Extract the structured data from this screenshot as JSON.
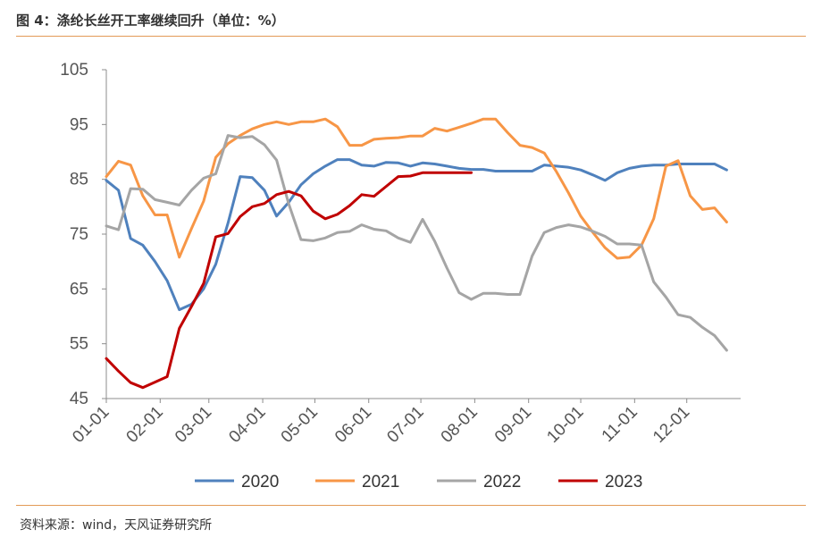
{
  "header": {
    "title": "图 4：涤纶长丝开工率继续回升（单位：%）"
  },
  "footer": {
    "source": "资料来源：wind，天风证券研究所"
  },
  "chart_data": {
    "type": "line",
    "title": "",
    "xlabel": "",
    "ylabel": "",
    "ylim": [
      45,
      105
    ],
    "yticks": [
      "45",
      "55",
      "65",
      "75",
      "85",
      "95",
      "105"
    ],
    "xticks": [
      "01-01",
      "02-01",
      "03-01",
      "04-01",
      "05-01",
      "06-01",
      "07-01",
      "08-01",
      "09-01",
      "10-01",
      "11-01",
      "12-01"
    ],
    "x_domain": [
      1,
      366
    ],
    "grid": false,
    "legend_position": "bottom",
    "series": [
      {
        "name": "2020",
        "color": "#4f81bd",
        "points": [
          [
            1,
            84.8
          ],
          [
            8,
            83
          ],
          [
            15,
            74.2
          ],
          [
            22,
            73
          ],
          [
            29,
            70
          ],
          [
            36,
            66.5
          ],
          [
            43,
            61.2
          ],
          [
            50,
            62.2
          ],
          [
            57,
            65
          ],
          [
            64,
            69.5
          ],
          [
            71,
            77
          ],
          [
            78,
            85.5
          ],
          [
            85,
            85.3
          ],
          [
            92,
            83
          ],
          [
            99,
            78.3
          ],
          [
            106,
            80.8
          ],
          [
            113,
            84
          ],
          [
            120,
            86
          ],
          [
            127,
            87.4
          ],
          [
            134,
            88.6
          ],
          [
            141,
            88.6
          ],
          [
            148,
            87.6
          ],
          [
            155,
            87.4
          ],
          [
            162,
            88.1
          ],
          [
            169,
            88
          ],
          [
            176,
            87.4
          ],
          [
            183,
            88
          ],
          [
            190,
            87.8
          ],
          [
            197,
            87.4
          ],
          [
            204,
            87
          ],
          [
            211,
            86.8
          ],
          [
            218,
            86.8
          ],
          [
            225,
            86.5
          ],
          [
            232,
            86.5
          ],
          [
            239,
            86.5
          ],
          [
            246,
            86.5
          ],
          [
            253,
            87.6
          ],
          [
            260,
            87.4
          ],
          [
            267,
            87.2
          ],
          [
            274,
            86.7
          ],
          [
            281,
            85.8
          ],
          [
            288,
            84.8
          ],
          [
            295,
            86.2
          ],
          [
            302,
            87
          ],
          [
            309,
            87.4
          ],
          [
            316,
            87.6
          ],
          [
            323,
            87.6
          ],
          [
            330,
            87.8
          ],
          [
            337,
            87.8
          ],
          [
            344,
            87.8
          ],
          [
            351,
            87.8
          ],
          [
            358,
            86.7
          ]
        ]
      },
      {
        "name": "2021",
        "color": "#f79646",
        "points": [
          [
            1,
            85.5
          ],
          [
            8,
            88.3
          ],
          [
            15,
            87.6
          ],
          [
            22,
            82
          ],
          [
            29,
            78.5
          ],
          [
            36,
            78.5
          ],
          [
            43,
            70.8
          ],
          [
            50,
            76
          ],
          [
            57,
            81
          ],
          [
            64,
            89
          ],
          [
            71,
            91.5
          ],
          [
            78,
            93
          ],
          [
            85,
            94.2
          ],
          [
            92,
            95
          ],
          [
            99,
            95.5
          ],
          [
            106,
            95
          ],
          [
            113,
            95.5
          ],
          [
            120,
            95.5
          ],
          [
            127,
            96
          ],
          [
            134,
            94.6
          ],
          [
            141,
            91.2
          ],
          [
            148,
            91.2
          ],
          [
            155,
            92.3
          ],
          [
            162,
            92.5
          ],
          [
            169,
            92.6
          ],
          [
            176,
            92.9
          ],
          [
            183,
            92.9
          ],
          [
            190,
            94.3
          ],
          [
            197,
            93.8
          ],
          [
            204,
            94.5
          ],
          [
            211,
            95.2
          ],
          [
            218,
            96
          ],
          [
            225,
            96
          ],
          [
            232,
            93.5
          ],
          [
            239,
            91.2
          ],
          [
            246,
            90.8
          ],
          [
            253,
            89.8
          ],
          [
            260,
            86.4
          ],
          [
            267,
            82.5
          ],
          [
            274,
            78.3
          ],
          [
            281,
            75.3
          ],
          [
            288,
            72.5
          ],
          [
            295,
            70.6
          ],
          [
            302,
            70.8
          ],
          [
            309,
            73
          ],
          [
            316,
            77.8
          ],
          [
            323,
            87.4
          ],
          [
            330,
            88.4
          ],
          [
            337,
            82
          ],
          [
            344,
            79.5
          ],
          [
            351,
            79.8
          ],
          [
            358,
            77.2
          ]
        ]
      },
      {
        "name": "2022",
        "color": "#a5a5a5",
        "points": [
          [
            1,
            76.5
          ],
          [
            8,
            75.8
          ],
          [
            15,
            83.3
          ],
          [
            22,
            83.2
          ],
          [
            29,
            81.3
          ],
          [
            36,
            80.8
          ],
          [
            43,
            80.3
          ],
          [
            50,
            83
          ],
          [
            57,
            85.2
          ],
          [
            64,
            86
          ],
          [
            71,
            93
          ],
          [
            78,
            92.6
          ],
          [
            85,
            92.8
          ],
          [
            92,
            91.3
          ],
          [
            99,
            88.5
          ],
          [
            106,
            80.5
          ],
          [
            113,
            74
          ],
          [
            120,
            73.8
          ],
          [
            127,
            74.3
          ],
          [
            134,
            75.3
          ],
          [
            141,
            75.5
          ],
          [
            148,
            76.7
          ],
          [
            155,
            75.9
          ],
          [
            162,
            75.6
          ],
          [
            169,
            74.3
          ],
          [
            176,
            73.5
          ],
          [
            183,
            77.7
          ],
          [
            190,
            73.7
          ],
          [
            197,
            68.8
          ],
          [
            204,
            64.3
          ],
          [
            211,
            63.1
          ],
          [
            218,
            64.2
          ],
          [
            225,
            64.2
          ],
          [
            232,
            64
          ],
          [
            239,
            64
          ],
          [
            246,
            71
          ],
          [
            253,
            75.3
          ],
          [
            260,
            76.2
          ],
          [
            267,
            76.7
          ],
          [
            274,
            76.3
          ],
          [
            281,
            75.5
          ],
          [
            288,
            74.6
          ],
          [
            295,
            73.2
          ],
          [
            302,
            73.2
          ],
          [
            309,
            73
          ],
          [
            316,
            66.3
          ],
          [
            323,
            63.5
          ],
          [
            330,
            60.3
          ],
          [
            337,
            59.8
          ],
          [
            344,
            58
          ],
          [
            351,
            56.5
          ],
          [
            358,
            53.8
          ]
        ]
      },
      {
        "name": "2023",
        "color": "#c00000",
        "points": [
          [
            1,
            52.3
          ],
          [
            8,
            50
          ],
          [
            15,
            47.9
          ],
          [
            22,
            47
          ],
          [
            29,
            48
          ],
          [
            36,
            49
          ],
          [
            43,
            57.8
          ],
          [
            50,
            61.8
          ],
          [
            57,
            66
          ],
          [
            64,
            74.5
          ],
          [
            71,
            75.1
          ],
          [
            78,
            78.2
          ],
          [
            85,
            80
          ],
          [
            92,
            80.6
          ],
          [
            99,
            82.2
          ],
          [
            106,
            82.8
          ],
          [
            113,
            82
          ],
          [
            120,
            79.2
          ],
          [
            127,
            77.8
          ],
          [
            134,
            78.6
          ],
          [
            141,
            80.2
          ],
          [
            148,
            82.2
          ],
          [
            155,
            81.9
          ],
          [
            162,
            83.7
          ],
          [
            169,
            85.5
          ],
          [
            176,
            85.6
          ],
          [
            183,
            86.2
          ],
          [
            190,
            86.2
          ],
          [
            197,
            86.2
          ],
          [
            204,
            86.2
          ],
          [
            211,
            86.2
          ]
        ]
      }
    ]
  }
}
